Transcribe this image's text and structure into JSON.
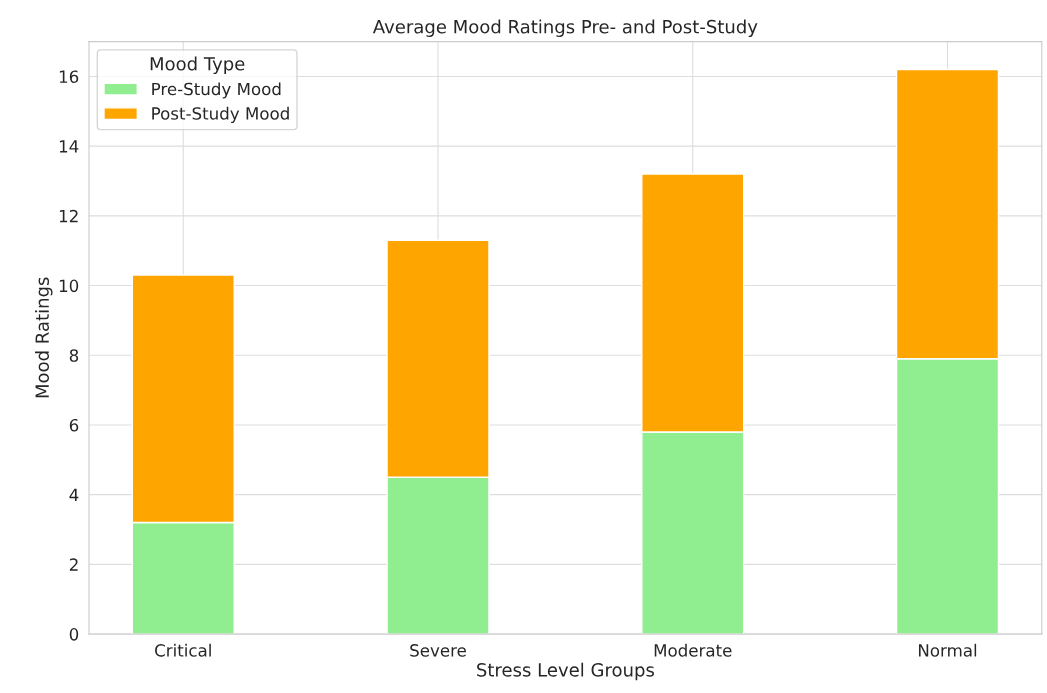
{
  "chart_data": {
    "type": "bar",
    "title": "Average Mood Ratings Pre- and Post-Study",
    "xlabel": "Stress Level Groups",
    "ylabel": "Mood Ratings",
    "legend_title": "Mood Type",
    "categories": [
      "Critical",
      "Severe",
      "Moderate",
      "Normal"
    ],
    "series": [
      {
        "name": "Pre-Study Mood",
        "color": "#90ee90",
        "values": [
          3.2,
          4.5,
          5.8,
          7.9
        ]
      },
      {
        "name": "Post-Study Mood",
        "color": "#ffa500",
        "values": [
          7.1,
          6.8,
          7.4,
          8.3
        ]
      }
    ],
    "stacked": true,
    "ylim": [
      0,
      17
    ],
    "yticks": [
      0,
      2,
      4,
      6,
      8,
      10,
      12,
      14,
      16
    ],
    "grid": true,
    "legend": "top left"
  }
}
